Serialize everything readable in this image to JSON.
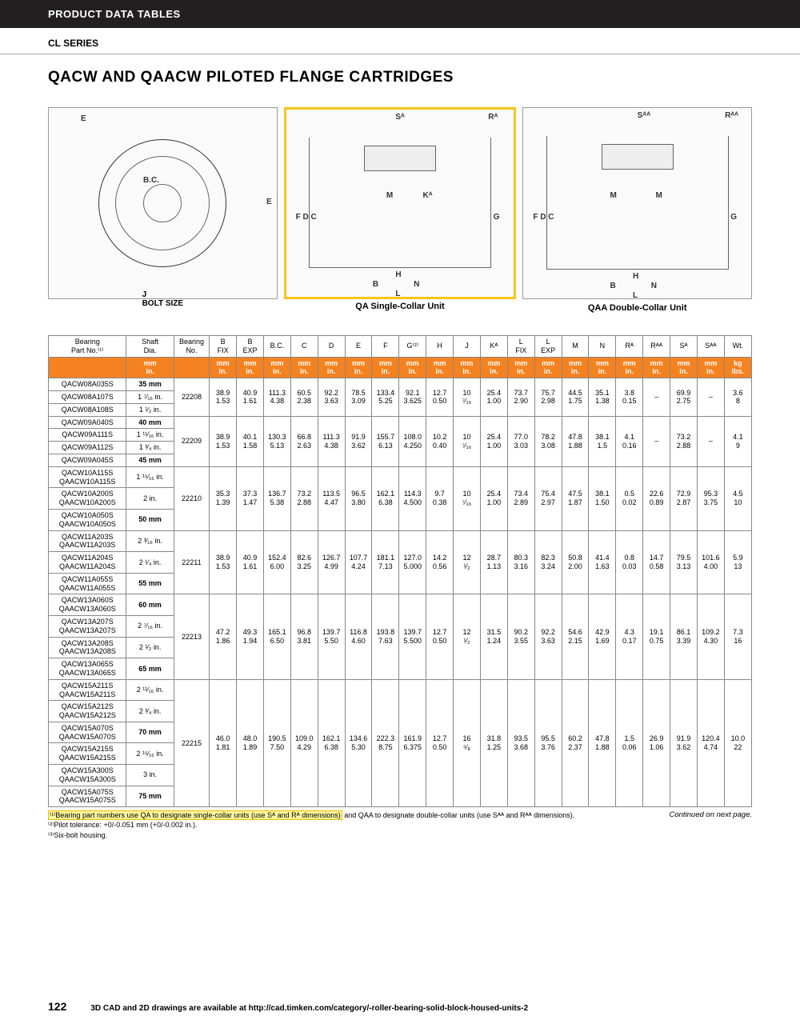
{
  "header": "PRODUCT DATA TABLES",
  "subheader": "CL SERIES",
  "title": "QACW AND QAACW PILOTED FLANGE CARTRIDGES",
  "diagrams": {
    "d1_label": "J\nBOLT SIZE",
    "d2_label": "QA Single-Collar Unit",
    "d3_label": "QAA Double-Collar Unit",
    "d1_letters": [
      "E",
      "B.C.",
      "E"
    ],
    "d2_letters": [
      "S",
      "R",
      "F",
      "D",
      "C",
      "M",
      "K",
      "G",
      "H",
      "B",
      "N",
      "L"
    ],
    "d3_letters": [
      "S",
      "R",
      "F",
      "D",
      "C",
      "M",
      "M",
      "G",
      "H",
      "B",
      "N",
      "L"
    ]
  },
  "table": {
    "headers": [
      "Bearing\nPart No.⁽¹⁾",
      "Shaft\nDia.",
      "Bearing\nNo.",
      "B\nFIX",
      "B\nEXP",
      "B.C.",
      "C",
      "D",
      "E",
      "F",
      "G⁽²⁾",
      "H",
      "J",
      "Kᴬ",
      "L\nFIX",
      "L\nEXP",
      "M",
      "N",
      "Rᴬ",
      "Rᴬᴬ",
      "Sᴬ",
      "Sᴬᴬ",
      "Wt."
    ],
    "unit_row": [
      "",
      "mm\nin.",
      "",
      "mm\nin.",
      "mm\nin.",
      "mm\nin.",
      "mm\nin.",
      "mm\nin.",
      "mm\nin.",
      "mm\nin.",
      "mm\nin.",
      "mm\nin.",
      "mm\nin.",
      "mm\nin.",
      "mm\nin.",
      "mm\nin.",
      "mm\nin.",
      "mm\nin.",
      "mm\nin.",
      "mm\nin.",
      "mm\nin.",
      "mm\nin.",
      "kg\nlbs."
    ],
    "groups": [
      {
        "parts": [
          {
            "pn": "QACW08A035S",
            "shaft": "35 mm",
            "bold": true
          },
          {
            "pn": "QACW08A107S",
            "shaft": "1 ⁷⁄₁₆ in."
          },
          {
            "pn": "QACW08A108S",
            "shaft": "1 ¹⁄₂ in."
          }
        ],
        "brg": "22208",
        "dims": [
          [
            "38.9",
            "40.9",
            "111.3",
            "60.5",
            "92.2",
            "78.5",
            "133.4",
            "92.1",
            "12.7",
            "10",
            "25.4",
            "73.7",
            "75.7",
            "44.5",
            "35.1",
            "3.8",
            "–",
            "69.9",
            "–",
            "3.6"
          ],
          [
            "1.53",
            "1.61",
            "4.38",
            "2.38",
            "3.63",
            "3.09",
            "5.25",
            "3.625",
            "0.50",
            "⁷⁄₁₆",
            "1.00",
            "2.90",
            "2.98",
            "1.75",
            "1.38",
            "0.15",
            "",
            "2.75",
            "",
            "8"
          ]
        ]
      },
      {
        "parts": [
          {
            "pn": "QACW09A040S",
            "shaft": "40 mm",
            "bold": true
          },
          {
            "pn": "QACW09A111S",
            "shaft": "1 ¹¹⁄₁₆ in."
          },
          {
            "pn": "QACW09A112S",
            "shaft": "1 ³⁄₄ in."
          },
          {
            "pn": "QACW09A045S",
            "shaft": "45 mm",
            "bold": true
          }
        ],
        "brg": "22209",
        "dims": [
          [
            "38.9",
            "40.1",
            "130.3",
            "66.8",
            "111.3",
            "91.9",
            "155.7",
            "108.0",
            "10.2",
            "10",
            "25.4",
            "77.0",
            "78.2",
            "47.8",
            "38.1",
            "4.1",
            "–",
            "73.2",
            "–",
            "4.1"
          ],
          [
            "1.53",
            "1.58",
            "5.13",
            "2.63",
            "4.38",
            "3.62",
            "6.13",
            "4.250",
            "0.40",
            "⁷⁄₁₆",
            "1.00",
            "3.03",
            "3.08",
            "1.88",
            "1.5",
            "0.16",
            "",
            "2.88",
            "",
            "9"
          ]
        ]
      },
      {
        "parts": [
          {
            "pn": "QACW10A115S\nQAACW10A115S",
            "shaft": "1 ¹⁵⁄₁₆ in."
          },
          {
            "pn": "QACW10A200S\nQAACW10A200S",
            "shaft": "2 in."
          },
          {
            "pn": "QACW10A050S\nQAACW10A050S",
            "shaft": "50 mm",
            "bold": true
          }
        ],
        "brg": "22210",
        "dims": [
          [
            "35.3",
            "37.3",
            "136.7",
            "73.2",
            "113.5",
            "96.5",
            "162.1",
            "114.3",
            "9.7",
            "10",
            "25.4",
            "73.4",
            "75.4",
            "47.5",
            "38.1",
            "0.5",
            "22.6",
            "72.9",
            "95.3",
            "4.5"
          ],
          [
            "1.39",
            "1.47",
            "5.38",
            "2.88",
            "4.47",
            "3.80",
            "6.38",
            "4.500",
            "0.38",
            "⁷⁄₁₆",
            "1.00",
            "2.89",
            "2.97",
            "1.87",
            "1.50",
            "0.02",
            "0.89",
            "2.87",
            "3.75",
            "10"
          ]
        ]
      },
      {
        "parts": [
          {
            "pn": "QACW11A203S\nQAACW11A203S",
            "shaft": "2 ³⁄₁₆ in."
          },
          {
            "pn": "QACW11A204S\nQAACW11A204S",
            "shaft": "2 ¹⁄₄ in."
          },
          {
            "pn": "QACW11A055S\nQAACW11A055S",
            "shaft": "55 mm",
            "bold": true
          }
        ],
        "brg": "22211",
        "dims": [
          [
            "38.9",
            "40.9",
            "152.4",
            "82.6",
            "126.7",
            "107.7",
            "181.1",
            "127.0",
            "14.2",
            "12",
            "28.7",
            "80.3",
            "82.3",
            "50.8",
            "41.4",
            "0.8",
            "14.7",
            "79.5",
            "101.6",
            "5.9"
          ],
          [
            "1.53",
            "1.61",
            "6.00",
            "3.25",
            "4.99",
            "4.24",
            "7.13",
            "5.000",
            "0.56",
            "¹⁄₂",
            "1.13",
            "3.16",
            "3.24",
            "2.00",
            "1.63",
            "0.03",
            "0.58",
            "3.13",
            "4.00",
            "13"
          ]
        ]
      },
      {
        "parts": [
          {
            "pn": "QACW13A060S\nQAACW13A060S",
            "shaft": "60 mm",
            "bold": true
          },
          {
            "pn": "QACW13A207S\nQAACW13A207S",
            "shaft": "2 ⁷⁄₁₆ in."
          },
          {
            "pn": "QACW13A208S\nQAACW13A208S",
            "shaft": "2 ¹⁄₂ in."
          },
          {
            "pn": "QACW13A065S\nQAACW13A065S",
            "shaft": "65 mm",
            "bold": true
          }
        ],
        "brg": "22213",
        "dims": [
          [
            "47.2",
            "49.3",
            "165.1",
            "96.8",
            "139.7",
            "116.8",
            "193.8",
            "139.7",
            "12.7",
            "12",
            "31.5",
            "90.2",
            "92.2",
            "54.6",
            "42.9",
            "4.3",
            "19.1",
            "86.1",
            "109.2",
            "7.3"
          ],
          [
            "1.86",
            "1.94",
            "6.50",
            "3.81",
            "5.50",
            "4.60",
            "7.63",
            "5.500",
            "0.50",
            "¹⁄₂",
            "1.24",
            "3.55",
            "3.63",
            "2.15",
            "1.69",
            "0.17",
            "0.75",
            "3.39",
            "4.30",
            "16"
          ]
        ]
      },
      {
        "parts": [
          {
            "pn": "QACW15A211S\nQAACW15A211S",
            "shaft": "2 ¹¹⁄₁₆ in."
          },
          {
            "pn": "QACW15A212S\nQAACW15A212S",
            "shaft": "2 ³⁄₄ in."
          },
          {
            "pn": "QACW15A070S\nQAACW15A070S",
            "shaft": "70 mm",
            "bold": true
          },
          {
            "pn": "QACW15A215S\nQAACW15A215S",
            "shaft": "2 ¹⁵⁄₁₆ in."
          },
          {
            "pn": "QACW15A300S\nQAACW15A300S",
            "shaft": "3 in."
          },
          {
            "pn": "QACW15A075S\nQAACW15A075S",
            "shaft": "75 mm",
            "bold": true
          }
        ],
        "brg": "22215",
        "dims": [
          [
            "46.0",
            "48.0",
            "190.5",
            "109.0",
            "162.1",
            "134.6",
            "222.3",
            "161.9",
            "12.7",
            "16",
            "31.8",
            "93.5",
            "95.5",
            "60.2",
            "47.8",
            "1.5",
            "26.9",
            "91.9",
            "120.4",
            "10.0"
          ],
          [
            "1.81",
            "1.89",
            "7.50",
            "4.29",
            "6.38",
            "5.30",
            "8.75",
            "6.375",
            "0.50",
            "⁵⁄₈",
            "1.25",
            "3.68",
            "3.76",
            "2.37",
            "1.88",
            "0.06",
            "1.06",
            "3.62",
            "4.74",
            "22"
          ]
        ]
      }
    ]
  },
  "footnotes": [
    "⁽¹⁾Bearing part numbers use QA to designate single-collar units (use Sᴬ and Rᴬ dimensions)",
    " and QAA to designate double-collar units (use Sᴬᴬ and Rᴬᴬ dimensions).",
    "⁽²⁾Pilot tolerance: +0/-0.051 mm (+0/-0.002 in.).",
    "⁽³⁾Six-bolt housing."
  ],
  "continued": "Continued on next page.",
  "footer": {
    "page": "122",
    "text": "3D CAD and 2D drawings are available at http://cad.timken.com/category/-roller-bearing-solid-block-housed-units-2"
  },
  "colors": {
    "header_bg": "#231f20",
    "accent": "#f58220",
    "highlight": "#f5c518",
    "footnote_hl": "#fff59d"
  }
}
